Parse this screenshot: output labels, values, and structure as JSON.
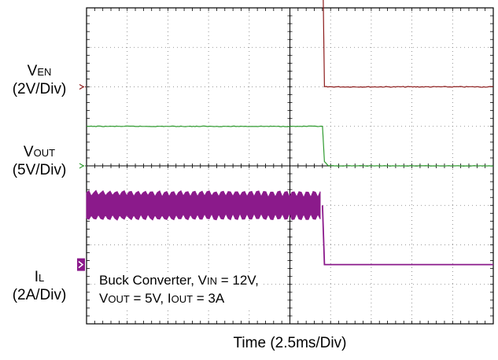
{
  "chart_data": {
    "type": "line",
    "title": "",
    "xlabel": "Time (2.5ms/Div)",
    "x_divisions": 10,
    "y_divisions": 8,
    "grid": true,
    "channels": [
      {
        "label_main": "V",
        "label_sub": "EN",
        "scale": "(2V/Div)",
        "color": "#8b1a1a",
        "marker": "arrow",
        "ground_div": 2.0,
        "points": [
          [
            0,
            3.6
          ],
          [
            5.8,
            3.6
          ],
          [
            5.85,
            0
          ],
          [
            10,
            0
          ]
        ],
        "noise": 0.02
      },
      {
        "label_main": "V",
        "label_sub": "OUT",
        "scale": "(5V/Div)",
        "color": "#2e9a2e",
        "marker": "arrow",
        "ground_div": 4.0,
        "points": [
          [
            0,
            1.0
          ],
          [
            5.8,
            1.0
          ],
          [
            5.85,
            0.1
          ],
          [
            5.95,
            0
          ],
          [
            10,
            0
          ]
        ],
        "noise": 0.015
      },
      {
        "label_main": "I",
        "label_sub": "L",
        "scale": "(2A/Div)",
        "color": "#8b1a8b",
        "marker": "filled",
        "ground_div": 6.5,
        "points": [
          [
            0,
            1.5
          ],
          [
            5.8,
            1.5
          ],
          [
            5.85,
            0
          ],
          [
            10,
            0
          ]
        ],
        "ripple": 0.35
      }
    ],
    "annotation": {
      "line1": {
        "a": "Buck Converter, V",
        "b": "IN",
        "c": " = 12V,"
      },
      "line2": {
        "a": "V",
        "b": "OUT",
        "c": " = 5V, I",
        "d": "OUT",
        "e": " = 3A"
      }
    }
  }
}
